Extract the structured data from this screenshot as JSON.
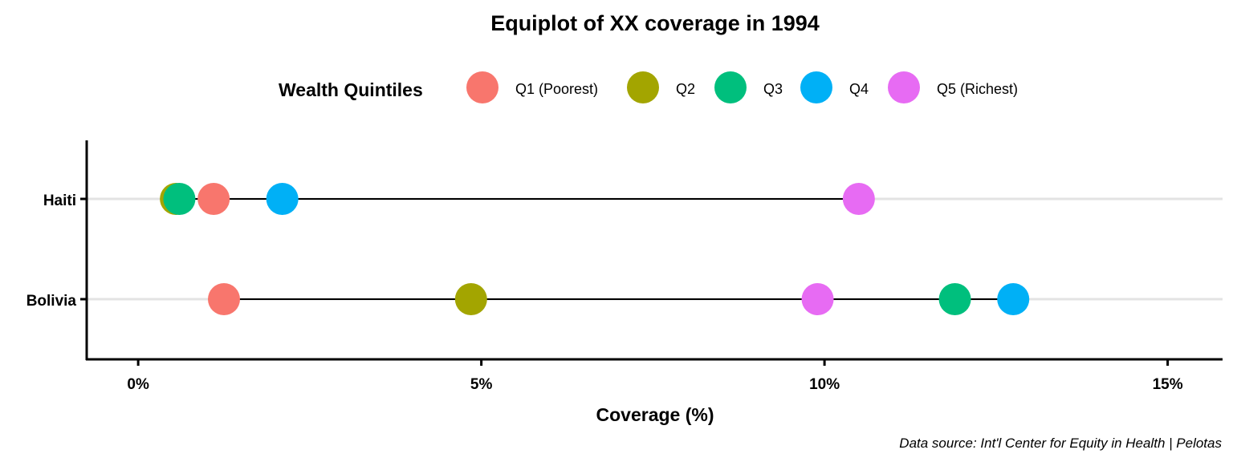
{
  "chart_data": {
    "type": "scatter",
    "title": "Equiplot of XX coverage in 1994",
    "xlabel": "Coverage (%)",
    "ylabel": "",
    "xlim": [
      -0.75,
      15.8
    ],
    "x_ticks": [
      0,
      5,
      10,
      15
    ],
    "x_tick_labels": [
      "0%",
      "5%",
      "10%",
      "15%"
    ],
    "grid": "horizontal",
    "legend_position": "top",
    "legend_title": "Wealth Quintiles",
    "categories": [
      "Haiti",
      "Bolivia"
    ],
    "series": [
      {
        "name": "Q1 (Poorest)",
        "color": "#F8766D",
        "values": [
          1.1,
          1.25
        ]
      },
      {
        "name": "Q2",
        "color": "#A3A500",
        "values": [
          0.55,
          4.85
        ]
      },
      {
        "name": "Q3",
        "color": "#00BF7D",
        "values": [
          0.6,
          11.9
        ]
      },
      {
        "name": "Q4",
        "color": "#00B0F6",
        "values": [
          2.1,
          12.75
        ]
      },
      {
        "name": "Q5 (Richest)",
        "color": "#E76BF3",
        "values": [
          10.5,
          9.9
        ]
      }
    ],
    "caption": "Data source: Int'l Center for Equity in Health | Pelotas"
  }
}
